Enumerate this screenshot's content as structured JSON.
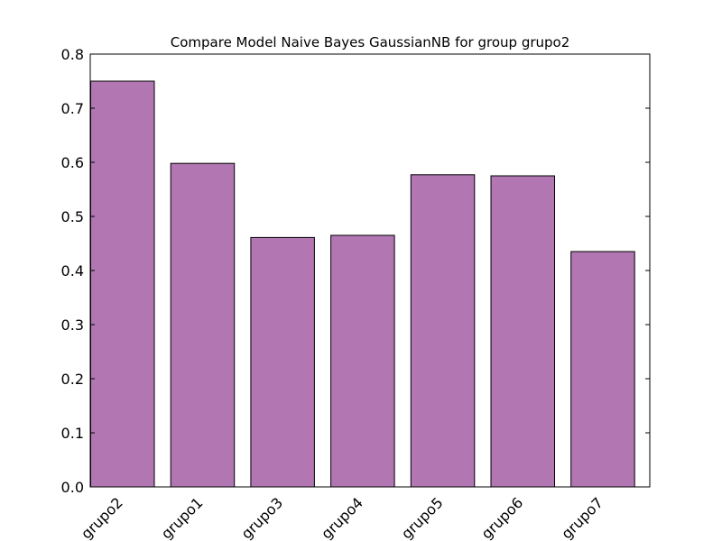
{
  "chart_data": {
    "type": "bar",
    "title": "Compare Model Naive Bayes GaussianNB for group grupo2",
    "xlabel": "",
    "ylabel": "",
    "categories": [
      "grupo2",
      "grupo1",
      "grupo3",
      "grupo4",
      "grupo5",
      "grupo6",
      "grupo7"
    ],
    "values": [
      0.75,
      0.598,
      0.461,
      0.465,
      0.577,
      0.575,
      0.435
    ],
    "ylim": [
      0,
      0.8
    ],
    "yticks": [
      "0.0",
      "0.1",
      "0.2",
      "0.3",
      "0.4",
      "0.5",
      "0.6",
      "0.7",
      "0.8"
    ],
    "bar_color": "#b276b2",
    "edge_color": "#000000",
    "grid": false,
    "legend": "none"
  }
}
